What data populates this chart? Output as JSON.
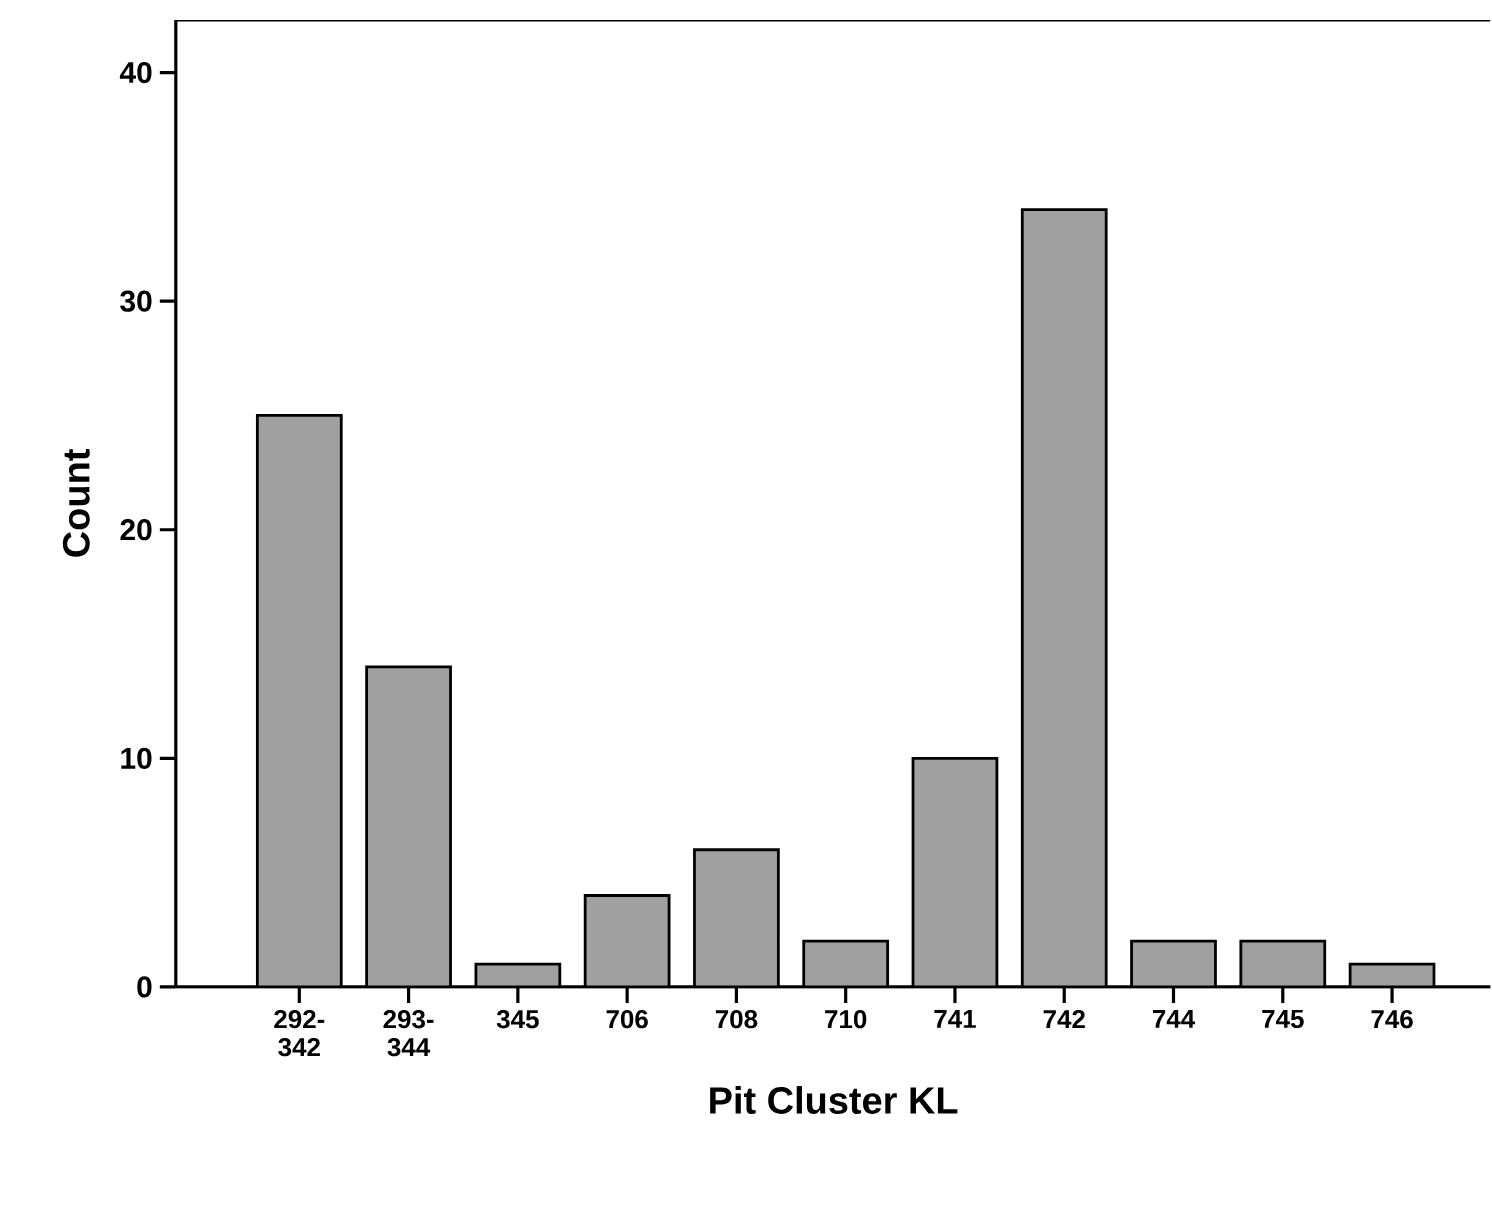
{
  "chart_data": {
    "type": "bar",
    "xlabel": "Pit Cluster KL",
    "ylabel": "Count",
    "categories": [
      "292-342",
      "293-344",
      "345",
      "706",
      "708",
      "710",
      "741",
      "742",
      "744",
      "745",
      "746"
    ],
    "values": [
      25,
      14,
      1,
      4,
      6,
      2,
      10,
      34,
      2,
      2,
      1
    ],
    "color": "#a0a0a0",
    "ylim": [
      0,
      42.3
    ],
    "yticks": [
      0,
      10,
      20,
      30,
      40
    ]
  }
}
